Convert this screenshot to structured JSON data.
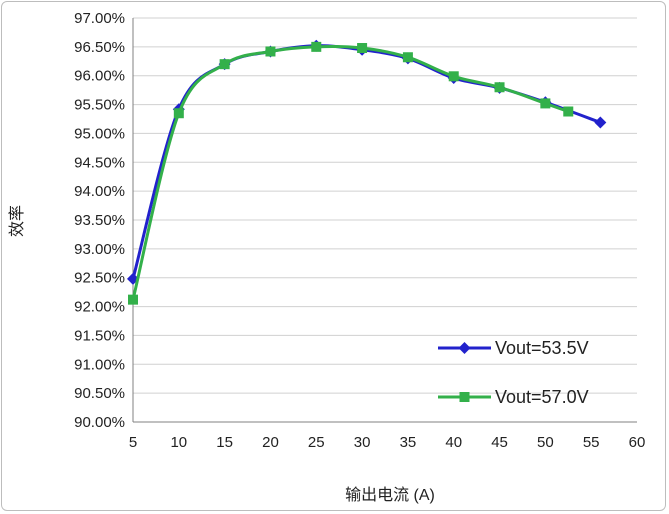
{
  "chart_data": {
    "type": "line",
    "title": "",
    "xlabel": "输出电流 (A)",
    "ylabel": "效率",
    "xlim": [
      5,
      60
    ],
    "ylim": [
      90.0,
      97.0
    ],
    "x_ticks": [
      "5",
      "10",
      "15",
      "20",
      "25",
      "30",
      "35",
      "40",
      "45",
      "50",
      "55",
      "60"
    ],
    "y_ticks": [
      "90.00%",
      "90.50%",
      "91.00%",
      "91.50%",
      "92.00%",
      "92.50%",
      "93.00%",
      "93.50%",
      "94.00%",
      "94.50%",
      "95.00%",
      "95.50%",
      "96.00%",
      "96.50%",
      "97.00%"
    ],
    "grid": "horizontal",
    "legend_position": "bottom-right",
    "series": [
      {
        "name": "Vout=53.5V",
        "color": "#2222cc",
        "marker": "diamond",
        "points": [
          {
            "x": 5,
            "y": 92.48
          },
          {
            "x": 10,
            "y": 95.42
          },
          {
            "x": 15,
            "y": 96.2
          },
          {
            "x": 20,
            "y": 96.42
          },
          {
            "x": 25,
            "y": 96.52
          },
          {
            "x": 30,
            "y": 96.45
          },
          {
            "x": 35,
            "y": 96.3
          },
          {
            "x": 40,
            "y": 95.96
          },
          {
            "x": 45,
            "y": 95.79
          },
          {
            "x": 50,
            "y": 95.54
          },
          {
            "x": 56,
            "y": 95.19
          }
        ]
      },
      {
        "name": "Vout=57.0V",
        "color": "#33b04a",
        "marker": "square",
        "points": [
          {
            "x": 5,
            "y": 92.12
          },
          {
            "x": 10,
            "y": 95.35
          },
          {
            "x": 15,
            "y": 96.2
          },
          {
            "x": 20,
            "y": 96.42
          },
          {
            "x": 25,
            "y": 96.5
          },
          {
            "x": 30,
            "y": 96.48
          },
          {
            "x": 35,
            "y": 96.32
          },
          {
            "x": 40,
            "y": 95.99
          },
          {
            "x": 45,
            "y": 95.8
          },
          {
            "x": 50,
            "y": 95.52
          },
          {
            "x": 52.5,
            "y": 95.38
          }
        ]
      }
    ]
  }
}
